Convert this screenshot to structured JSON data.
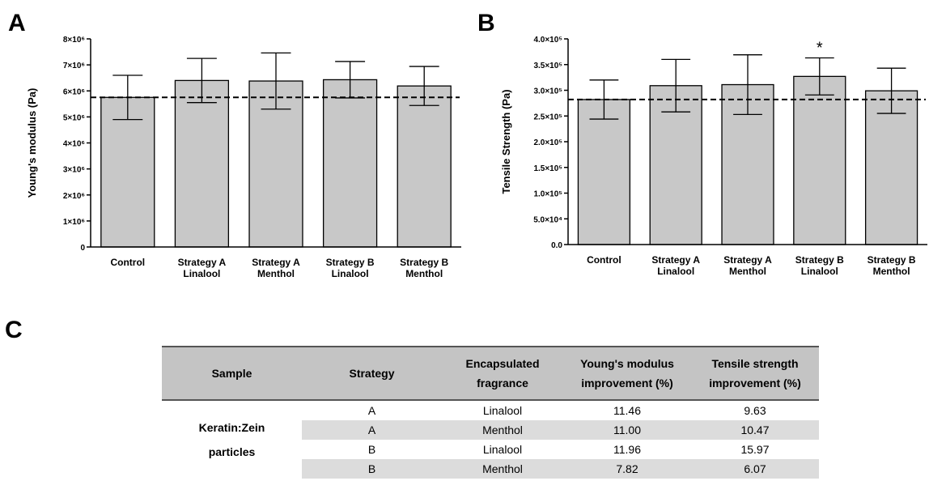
{
  "panels": {
    "a": "A",
    "b": "B",
    "c": "C"
  },
  "chart_data": [
    {
      "type": "bar",
      "ylabel": "Young's modulus (Pa)",
      "categories": [
        "Control",
        "Strategy A\nLinalool",
        "Strategy A\nMenthol",
        "Strategy B\nLinalool",
        "Strategy B\nMenthol"
      ],
      "values": [
        5750000,
        6400000,
        6380000,
        6430000,
        6190000
      ],
      "errors": [
        850000,
        850000,
        1080000,
        700000,
        750000
      ],
      "reference_line": 5750000,
      "ylim": [
        0,
        8000000
      ],
      "yticks": [
        0,
        1000000,
        2000000,
        3000000,
        4000000,
        5000000,
        6000000,
        7000000,
        8000000
      ],
      "ytick_labels": [
        "0",
        "1×10⁶",
        "2×10⁶",
        "3×10⁶",
        "4×10⁶",
        "5×10⁶",
        "6×10⁶",
        "7×10⁶",
        "8×10⁶"
      ],
      "annotations": []
    },
    {
      "type": "bar",
      "ylabel": "Tensile Strength (Pa)",
      "categories": [
        "Control",
        "Strategy A\nLinalool",
        "Strategy A\nMenthol",
        "Strategy B\nLinalool",
        "Strategy B\nMenthol"
      ],
      "values": [
        282000,
        309000,
        311000,
        327000,
        299000
      ],
      "errors": [
        38000,
        51000,
        58000,
        36000,
        44000
      ],
      "reference_line": 282000,
      "ylim": [
        0,
        400000
      ],
      "yticks": [
        0,
        50000,
        100000,
        150000,
        200000,
        250000,
        300000,
        350000,
        400000
      ],
      "ytick_labels": [
        "0.0",
        "5.0×10⁴",
        "1.0×10⁵",
        "1.5×10⁵",
        "2.0×10⁵",
        "2.5×10⁵",
        "3.0×10⁵",
        "3.5×10⁵",
        "4.0×10⁵"
      ],
      "annotations": [
        {
          "category": 3,
          "text": "*"
        }
      ]
    }
  ],
  "table": {
    "headers": {
      "sample": "Sample",
      "strategy": "Strategy",
      "fragrance_1": "Encapsulated",
      "fragrance_2": "fragrance",
      "young_1": "Young's modulus",
      "young_2": "improvement (%)",
      "tensile_1": "Tensile strength",
      "tensile_2": "improvement (%)"
    },
    "sample_1": "Keratin:Zein",
    "sample_2": "particles",
    "rows": [
      {
        "strategy": "A",
        "fragrance": "Linalool",
        "young": "11.46",
        "tensile": "9.63"
      },
      {
        "strategy": "A",
        "fragrance": "Menthol",
        "young": "11.00",
        "tensile": "10.47"
      },
      {
        "strategy": "B",
        "fragrance": "Linalool",
        "young": "11.96",
        "tensile": "15.97"
      },
      {
        "strategy": "B",
        "fragrance": "Menthol",
        "young": "7.82",
        "tensile": "6.07"
      }
    ]
  }
}
